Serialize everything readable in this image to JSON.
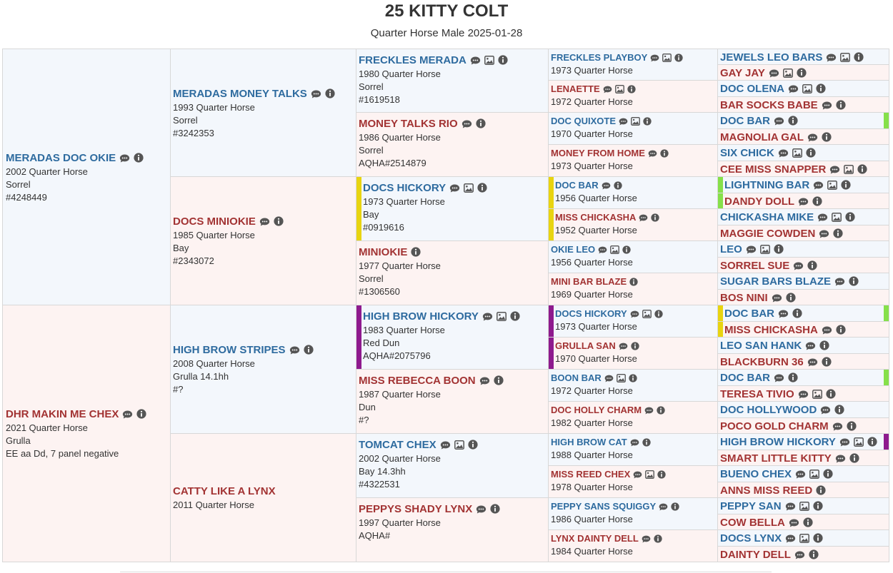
{
  "header": {
    "title": "25 KITTY COLT",
    "subtitle": "Quarter Horse Male 2025-01-28"
  },
  "colors": {
    "sire_name": "#2e6b9f",
    "dam_name": "#a23333",
    "sire_bg": "#f3f7fc",
    "dam_bg": "#fdf3f2",
    "marker_yellow": "#e8d410",
    "marker_green": "#86e04a",
    "marker_purple": "#8e1a8e"
  },
  "pedigree": [
    [
      {
        "name": "MERADAS DOC OKIE",
        "sex": "m",
        "lines": [
          "2002 Quarter Horse",
          "Sorrel",
          "#4248449"
        ],
        "icons": [
          "comment",
          "info"
        ]
      },
      {
        "name": "DHR MAKIN ME CHEX",
        "sex": "f",
        "lines": [
          "2021 Quarter Horse",
          "Grulla",
          "EE aa Dd, 7 panel negative"
        ],
        "icons": [
          "comment",
          "info"
        ]
      }
    ],
    [
      {
        "name": "MERADAS MONEY TALKS",
        "sex": "m",
        "lines": [
          "1993 Quarter Horse",
          "Sorrel",
          "#3242353"
        ],
        "icons": [
          "comment",
          "info"
        ]
      },
      {
        "name": "DOCS MINIOKIE",
        "sex": "f",
        "lines": [
          "1985 Quarter Horse",
          "Bay",
          "#2343072"
        ],
        "icons": [
          "comment",
          "info"
        ]
      },
      {
        "name": "HIGH BROW STRIPES",
        "sex": "m",
        "lines": [
          "2008 Quarter Horse",
          "Grulla 14.1hh",
          "#?"
        ],
        "icons": [
          "comment",
          "info"
        ]
      },
      {
        "name": "CATTY LIKE A LYNX",
        "sex": "f",
        "lines": [
          "2011 Quarter Horse"
        ],
        "icons": []
      }
    ],
    [
      {
        "name": "FRECKLES MERADA",
        "sex": "m",
        "lines": [
          "1980 Quarter Horse",
          "Sorrel",
          "#1619518"
        ],
        "icons": [
          "comment",
          "image",
          "info"
        ]
      },
      {
        "name": "MONEY TALKS RIO",
        "sex": "f",
        "lines": [
          "1986 Quarter Horse",
          "Sorrel",
          "AQHA#2514879"
        ],
        "icons": [
          "comment",
          "info"
        ]
      },
      {
        "name": "DOCS HICKORY",
        "sex": "m",
        "lines": [
          "1973 Quarter Horse",
          "Bay",
          "#0919616"
        ],
        "icons": [
          "comment",
          "image",
          "info"
        ],
        "marker": "yellow"
      },
      {
        "name": "MINIOKIE",
        "sex": "f",
        "lines": [
          "1977 Quarter Horse",
          "Sorrel",
          "#1306560"
        ],
        "icons": [
          "info"
        ]
      },
      {
        "name": "HIGH BROW HICKORY",
        "sex": "m",
        "lines": [
          "1983 Quarter Horse",
          "Red Dun",
          "AQHA#2075796"
        ],
        "icons": [
          "comment",
          "image",
          "info"
        ],
        "marker": "purple"
      },
      {
        "name": "MISS REBECCA BOON",
        "sex": "f",
        "lines": [
          "1987 Quarter Horse",
          "Dun",
          "#?"
        ],
        "icons": [
          "comment",
          "info"
        ]
      },
      {
        "name": "TOMCAT CHEX",
        "sex": "m",
        "lines": [
          "2002 Quarter Horse",
          "Bay 14.3hh",
          "#4322531"
        ],
        "icons": [
          "comment",
          "image",
          "info"
        ]
      },
      {
        "name": "PEPPYS SHADY LYNX",
        "sex": "f",
        "lines": [
          "1997 Quarter Horse",
          "AQHA#"
        ],
        "icons": [
          "comment",
          "info"
        ]
      }
    ],
    [
      {
        "name": "FRECKLES PLAYBOY",
        "sex": "m",
        "lines": [
          "1973 Quarter Horse"
        ],
        "icons": [
          "comment",
          "image",
          "info"
        ]
      },
      {
        "name": "LENAETTE",
        "sex": "f",
        "lines": [
          "1972 Quarter Horse"
        ],
        "icons": [
          "comment",
          "image",
          "info"
        ]
      },
      {
        "name": "DOC QUIXOTE",
        "sex": "m",
        "lines": [
          "1970 Quarter Horse"
        ],
        "icons": [
          "comment",
          "image",
          "info"
        ]
      },
      {
        "name": "MONEY FROM HOME",
        "sex": "f",
        "lines": [
          "1973 Quarter Horse"
        ],
        "icons": [
          "comment",
          "info"
        ]
      },
      {
        "name": "DOC BAR",
        "sex": "m",
        "lines": [
          "1956 Quarter Horse"
        ],
        "icons": [
          "comment",
          "info"
        ],
        "marker": "yellow"
      },
      {
        "name": "MISS CHICKASHA",
        "sex": "f",
        "lines": [
          "1952 Quarter Horse"
        ],
        "icons": [
          "comment",
          "info"
        ],
        "marker": "yellow"
      },
      {
        "name": "OKIE LEO",
        "sex": "m",
        "lines": [
          "1956 Quarter Horse"
        ],
        "icons": [
          "comment",
          "image",
          "info"
        ]
      },
      {
        "name": "MINI BAR BLAZE",
        "sex": "f",
        "lines": [
          "1969 Quarter Horse"
        ],
        "icons": [
          "info"
        ]
      },
      {
        "name": "DOCS HICKORY",
        "sex": "m",
        "lines": [
          "1973 Quarter Horse"
        ],
        "icons": [
          "comment",
          "image",
          "info"
        ],
        "marker": "purple"
      },
      {
        "name": "GRULLA SAN",
        "sex": "f",
        "lines": [
          "1970 Quarter Horse"
        ],
        "icons": [
          "comment",
          "info"
        ],
        "marker": "purple"
      },
      {
        "name": "BOON BAR",
        "sex": "m",
        "lines": [
          "1972 Quarter Horse"
        ],
        "icons": [
          "comment",
          "image",
          "info"
        ]
      },
      {
        "name": "DOC HOLLY CHARM",
        "sex": "f",
        "lines": [
          "1982 Quarter Horse"
        ],
        "icons": [
          "comment",
          "info"
        ]
      },
      {
        "name": "HIGH BROW CAT",
        "sex": "m",
        "lines": [
          "1988 Quarter Horse"
        ],
        "icons": [
          "comment",
          "info"
        ]
      },
      {
        "name": "MISS REED CHEX",
        "sex": "f",
        "lines": [
          "1978 Quarter Horse"
        ],
        "icons": [
          "comment",
          "image",
          "info"
        ]
      },
      {
        "name": "PEPPY SANS SQUIGGY",
        "sex": "m",
        "lines": [
          "1986 Quarter Horse"
        ],
        "icons": [
          "comment",
          "info"
        ]
      },
      {
        "name": "LYNX DAINTY DELL",
        "sex": "f",
        "lines": [
          "1984 Quarter Horse"
        ],
        "icons": [
          "comment",
          "info"
        ]
      }
    ],
    [
      {
        "name": "JEWELS LEO BARS",
        "sex": "m",
        "icons": [
          "comment",
          "image",
          "info"
        ]
      },
      {
        "name": "GAY JAY",
        "sex": "f",
        "icons": [
          "comment",
          "image",
          "info"
        ]
      },
      {
        "name": "DOC OLENA",
        "sex": "m",
        "icons": [
          "comment",
          "image",
          "info"
        ]
      },
      {
        "name": "BAR SOCKS BABE",
        "sex": "f",
        "icons": [
          "comment",
          "info"
        ]
      },
      {
        "name": "DOC BAR",
        "sex": "m",
        "icons": [
          "comment",
          "info"
        ],
        "marker_right": "green"
      },
      {
        "name": "MAGNOLIA GAL",
        "sex": "f",
        "icons": [
          "comment",
          "info"
        ]
      },
      {
        "name": "SIX CHICK",
        "sex": "m",
        "icons": [
          "comment",
          "image",
          "info"
        ]
      },
      {
        "name": "CEE MISS SNAPPER",
        "sex": "f",
        "icons": [
          "comment",
          "image",
          "info"
        ]
      },
      {
        "name": "LIGHTNING BAR",
        "sex": "m",
        "icons": [
          "comment",
          "image",
          "info"
        ],
        "marker": "green"
      },
      {
        "name": "DANDY DOLL",
        "sex": "f",
        "icons": [
          "comment",
          "info"
        ],
        "marker": "green"
      },
      {
        "name": "CHICKASHA MIKE",
        "sex": "m",
        "icons": [
          "comment",
          "image",
          "info"
        ]
      },
      {
        "name": "MAGGIE COWDEN",
        "sex": "f",
        "icons": [
          "comment",
          "info"
        ]
      },
      {
        "name": "LEO",
        "sex": "m",
        "icons": [
          "comment",
          "image",
          "info"
        ]
      },
      {
        "name": "SORREL SUE",
        "sex": "f",
        "icons": [
          "comment",
          "info"
        ]
      },
      {
        "name": "SUGAR BARS BLAZE",
        "sex": "m",
        "icons": [
          "comment",
          "info"
        ]
      },
      {
        "name": "BOS NINI",
        "sex": "f",
        "icons": [
          "comment",
          "info"
        ]
      },
      {
        "name": "DOC BAR",
        "sex": "m",
        "icons": [
          "comment",
          "info"
        ],
        "marker": "yellow",
        "marker_right": "green"
      },
      {
        "name": "MISS CHICKASHA",
        "sex": "f",
        "icons": [
          "comment",
          "info"
        ],
        "marker": "yellow"
      },
      {
        "name": "LEO SAN HANK",
        "sex": "m",
        "icons": [
          "comment",
          "info"
        ]
      },
      {
        "name": "BLACKBURN 36",
        "sex": "f",
        "icons": [
          "comment",
          "info"
        ]
      },
      {
        "name": "DOC BAR",
        "sex": "m",
        "icons": [
          "comment",
          "info"
        ],
        "marker_right": "green"
      },
      {
        "name": "TERESA TIVIO",
        "sex": "f",
        "icons": [
          "comment",
          "image",
          "info"
        ]
      },
      {
        "name": "DOC HOLLYWOOD",
        "sex": "m",
        "icons": [
          "comment",
          "info"
        ]
      },
      {
        "name": "POCO GOLD CHARM",
        "sex": "f",
        "icons": [
          "comment",
          "info"
        ]
      },
      {
        "name": "HIGH BROW HICKORY",
        "sex": "m",
        "icons": [
          "comment",
          "image",
          "info"
        ],
        "marker_right": "purple"
      },
      {
        "name": "SMART LITTLE KITTY",
        "sex": "f",
        "icons": [
          "comment",
          "info"
        ]
      },
      {
        "name": "BUENO CHEX",
        "sex": "m",
        "icons": [
          "comment",
          "image",
          "info"
        ]
      },
      {
        "name": "ANNS MISS REED",
        "sex": "f",
        "icons": [
          "info"
        ]
      },
      {
        "name": "PEPPY SAN",
        "sex": "m",
        "icons": [
          "comment",
          "image",
          "info"
        ]
      },
      {
        "name": "COW BELLA",
        "sex": "f",
        "icons": [
          "comment",
          "info"
        ]
      },
      {
        "name": "DOCS LYNX",
        "sex": "m",
        "icons": [
          "comment",
          "image",
          "info"
        ]
      },
      {
        "name": "DAINTY DELL",
        "sex": "f",
        "icons": [
          "comment",
          "info"
        ]
      }
    ]
  ]
}
